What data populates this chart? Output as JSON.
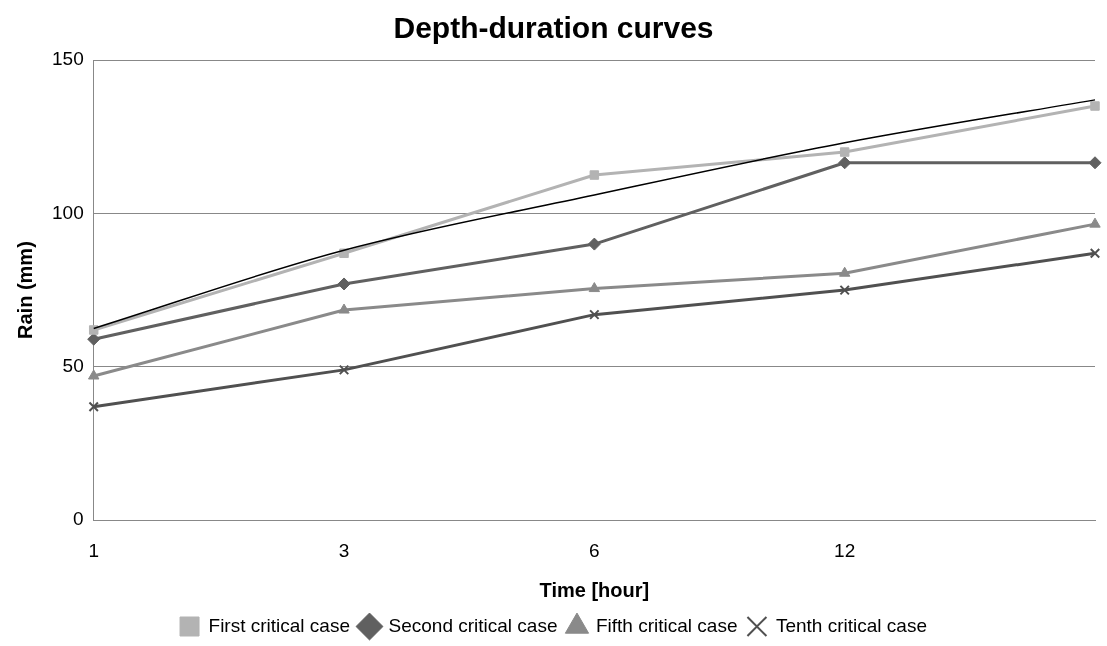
{
  "chart_data": {
    "type": "line",
    "title": "Depth-duration curves",
    "xlabel": "Time [hour]",
    "ylabel": "Rain (mm)",
    "categories": [
      "1",
      "3",
      "6",
      "12",
      null
    ],
    "series": [
      {
        "name": "First critical case",
        "color": "#b3b3b3",
        "marker": "square",
        "values": [
          62,
          87,
          112.5,
          120,
          135
        ]
      },
      {
        "name": "Second critical case",
        "color": "#606060",
        "marker": "diamond",
        "values": [
          59,
          77,
          90,
          116.5,
          116.5
        ]
      },
      {
        "name": "Fifth critical case",
        "color": "#8a8a8a",
        "marker": "triangle",
        "values": [
          47,
          68.5,
          75.5,
          80.5,
          96.5
        ]
      },
      {
        "name": "Tenth critical case",
        "color": "#505050",
        "marker": "cross",
        "values": [
          37,
          49,
          67,
          75,
          87
        ]
      },
      {
        "type": "line",
        "color": "#000000",
        "marker": "none",
        "values": [
          62.5,
          88,
          106,
          123,
          137
        ]
      }
    ],
    "ylim": [
      0,
      150
    ],
    "yticks": [
      0,
      50,
      100,
      150
    ],
    "grid": "y",
    "legend": "bottom"
  }
}
